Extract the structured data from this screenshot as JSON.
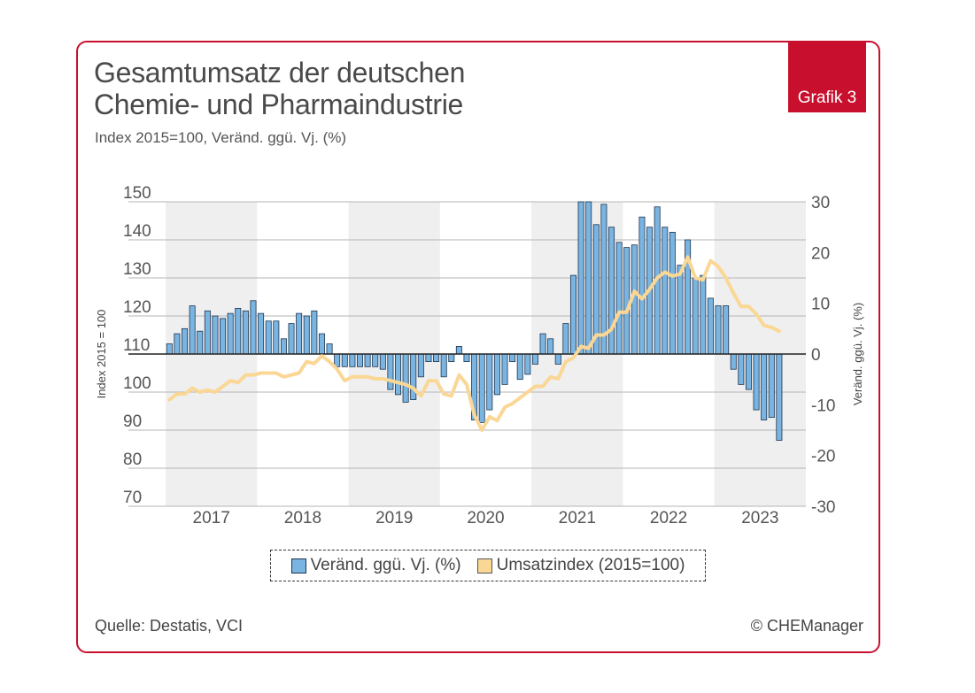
{
  "header": {
    "title_line1": "Gesamtumsatz der deutschen",
    "title_line2": "Chemie- und Pharmaindustrie",
    "subtitle": "Index 2015=100, Veränd. ggü. Vj. (%)",
    "badge": "Grafik 3"
  },
  "footer": {
    "source": "Quelle: Destatis, VCI",
    "copyright": "© CHEManager"
  },
  "colors": {
    "accent": "#c8102e",
    "bar_fill": "#7ab4e0",
    "bar_stroke": "#1f3550",
    "line": "#fad795",
    "band": "#efefef",
    "grid": "#b5b5b5"
  },
  "chart_data": {
    "type": "bar+line",
    "title": "Gesamtumsatz der deutschen Chemie- und Pharmaindustrie",
    "left_axis": {
      "label": "Index 2015 = 100",
      "range": [
        70,
        150
      ],
      "ticks": [
        "150",
        "140",
        "130",
        "120",
        "110",
        "100",
        "90",
        "80",
        "70"
      ]
    },
    "right_axis": {
      "label": "Veränd. ggü. Vj. (%)",
      "range": [
        -30,
        30
      ],
      "ticks": [
        "30",
        "20",
        "10",
        "0",
        "-10",
        "-20",
        "-30"
      ]
    },
    "x_labels": [
      "2017",
      "2018",
      "2019",
      "2020",
      "2021",
      "2022",
      "2023"
    ],
    "legend": {
      "bars": "Veränd. ggü. Vj. (%)",
      "line": "Umsatzindex (2015=100)",
      "placement": "bottom-center"
    },
    "months_per_year": 12,
    "series": [
      {
        "name": "Veränd. ggü. Vj. (%)",
        "type": "bar",
        "axis": "right",
        "values": [
          2,
          4,
          5,
          9.5,
          4.5,
          8.5,
          7.5,
          7,
          8,
          9,
          8.5,
          10.5,
          8,
          6.5,
          6.5,
          3,
          6,
          8,
          7.5,
          8.5,
          4,
          2,
          -2.5,
          -2.5,
          -2.5,
          -2.5,
          -2.5,
          -2.5,
          -3,
          -7,
          -8,
          -9.5,
          -9,
          -4.5,
          -1.5,
          -1.5,
          -4.5,
          -1.5,
          1.5,
          -1.5,
          -13,
          -13.5,
          -11,
          -8,
          -6,
          -1.5,
          -5,
          -4,
          -2,
          4,
          3,
          -2,
          6,
          15.5,
          30,
          30,
          25.5,
          29.5,
          25,
          22,
          21,
          21.5,
          27,
          25,
          29,
          25,
          24,
          17.5,
          22.5,
          15,
          15.5,
          11,
          9.5,
          9.5,
          -3,
          -6,
          -7,
          -11,
          -13,
          -12.5,
          -17
        ]
      },
      {
        "name": "Umsatzindex (2015=100)",
        "type": "line",
        "axis": "left",
        "values": [
          98,
          99.5,
          99.5,
          101,
          100,
          100.5,
          100,
          101.5,
          103,
          102.5,
          104.5,
          104.5,
          105,
          105,
          105,
          104,
          104.5,
          105,
          108,
          107.5,
          109.5,
          108,
          106,
          103,
          104,
          104,
          104,
          103.5,
          103.5,
          103,
          102.5,
          102,
          101,
          99,
          103,
          103,
          99.5,
          99,
          104.5,
          102,
          94,
          90,
          93.5,
          92.5,
          96,
          97,
          98.5,
          100,
          101.5,
          101.5,
          104,
          103.5,
          108,
          109,
          112,
          111.5,
          115,
          115,
          116.5,
          121,
          121,
          126.5,
          124.5,
          127,
          130,
          131.5,
          130.5,
          131,
          135.5,
          130,
          129.5,
          134.5,
          133,
          130,
          126,
          122.5,
          122.5,
          120.5,
          117.5,
          117,
          116
        ]
      }
    ]
  }
}
